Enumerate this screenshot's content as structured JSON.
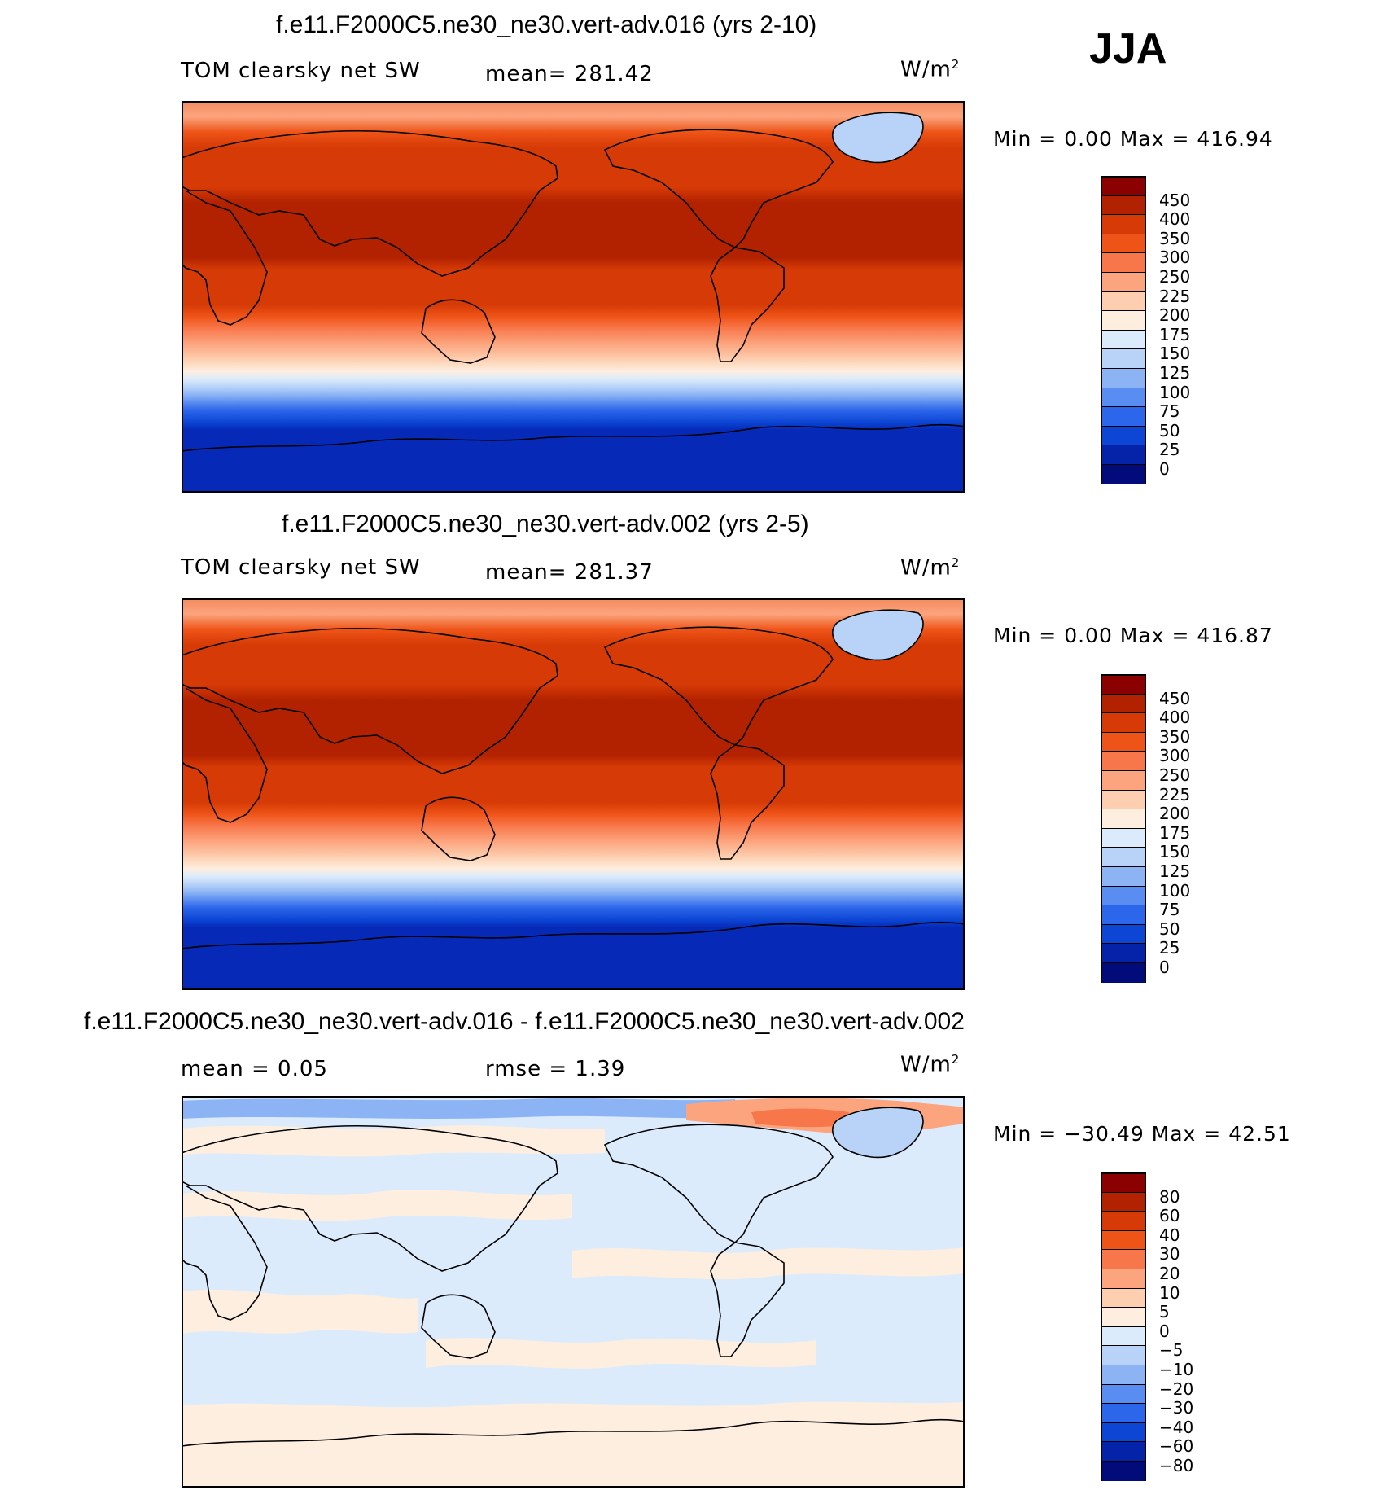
{
  "season": "JJA",
  "panels": [
    {
      "title": "f.e11.F2000C5.ne30_ne30.vert-adv.016 (yrs 2-10)",
      "variable": "TOM clearsky net SW",
      "mean": "mean= 281.42",
      "units": "W/m",
      "units_sup": "2",
      "minmax": "Min =    0.00 Max = 416.94",
      "colorbar": {
        "labels": [
          "450",
          "400",
          "350",
          "300",
          "250",
          "225",
          "200",
          "175",
          "150",
          "125",
          "100",
          "75",
          "50",
          "25",
          "0"
        ],
        "colors": [
          "#8b0000",
          "#b22200",
          "#d63a06",
          "#ee5317",
          "#f8774a",
          "#fca47e",
          "#fdcfb0",
          "#fdeee0",
          "#dcebfb",
          "#b8d2f8",
          "#8cb4f5",
          "#5a8df1",
          "#2c66ea",
          "#0d46d4",
          "#0423a8",
          "#020b7a"
        ]
      }
    },
    {
      "title": "f.e11.F2000C5.ne30_ne30.vert-adv.002 (yrs 2-5)",
      "variable": "TOM clearsky net SW",
      "mean": "mean= 281.37",
      "units": "W/m",
      "units_sup": "2",
      "minmax": "Min =    0.00 Max = 416.87",
      "colorbar": {
        "labels": [
          "450",
          "400",
          "350",
          "300",
          "250",
          "225",
          "200",
          "175",
          "150",
          "125",
          "100",
          "75",
          "50",
          "25",
          "0"
        ],
        "colors": [
          "#8b0000",
          "#b22200",
          "#d63a06",
          "#ee5317",
          "#f8774a",
          "#fca47e",
          "#fdcfb0",
          "#fdeee0",
          "#dcebfb",
          "#b8d2f8",
          "#8cb4f5",
          "#5a8df1",
          "#2c66ea",
          "#0d46d4",
          "#0423a8",
          "#020b7a"
        ]
      }
    },
    {
      "title": "f.e11.F2000C5.ne30_ne30.vert-adv.016 - f.e11.F2000C5.ne30_ne30.vert-adv.002",
      "mean": "mean =    0.05",
      "rmse": "rmse =    1.39",
      "units": "W/m",
      "units_sup": "2",
      "minmax": "Min = −30.49 Max =   42.51",
      "colorbar": {
        "labels": [
          "80",
          "60",
          "40",
          "30",
          "20",
          "10",
          "5",
          "0",
          "−5",
          "−10",
          "−20",
          "−30",
          "−40",
          "−60",
          "−80"
        ],
        "colors": [
          "#8b0000",
          "#b22200",
          "#d63a06",
          "#ee5317",
          "#f8774a",
          "#fca47e",
          "#fdcfb0",
          "#fdeee0",
          "#dcebfb",
          "#b8d2f8",
          "#8cb4f5",
          "#5a8df1",
          "#2c66ea",
          "#0d46d4",
          "#0423a8",
          "#020b7a"
        ]
      }
    }
  ],
  "map_colors": {
    "ocean_polar_south": "#0629b8",
    "lines": "#000000"
  }
}
